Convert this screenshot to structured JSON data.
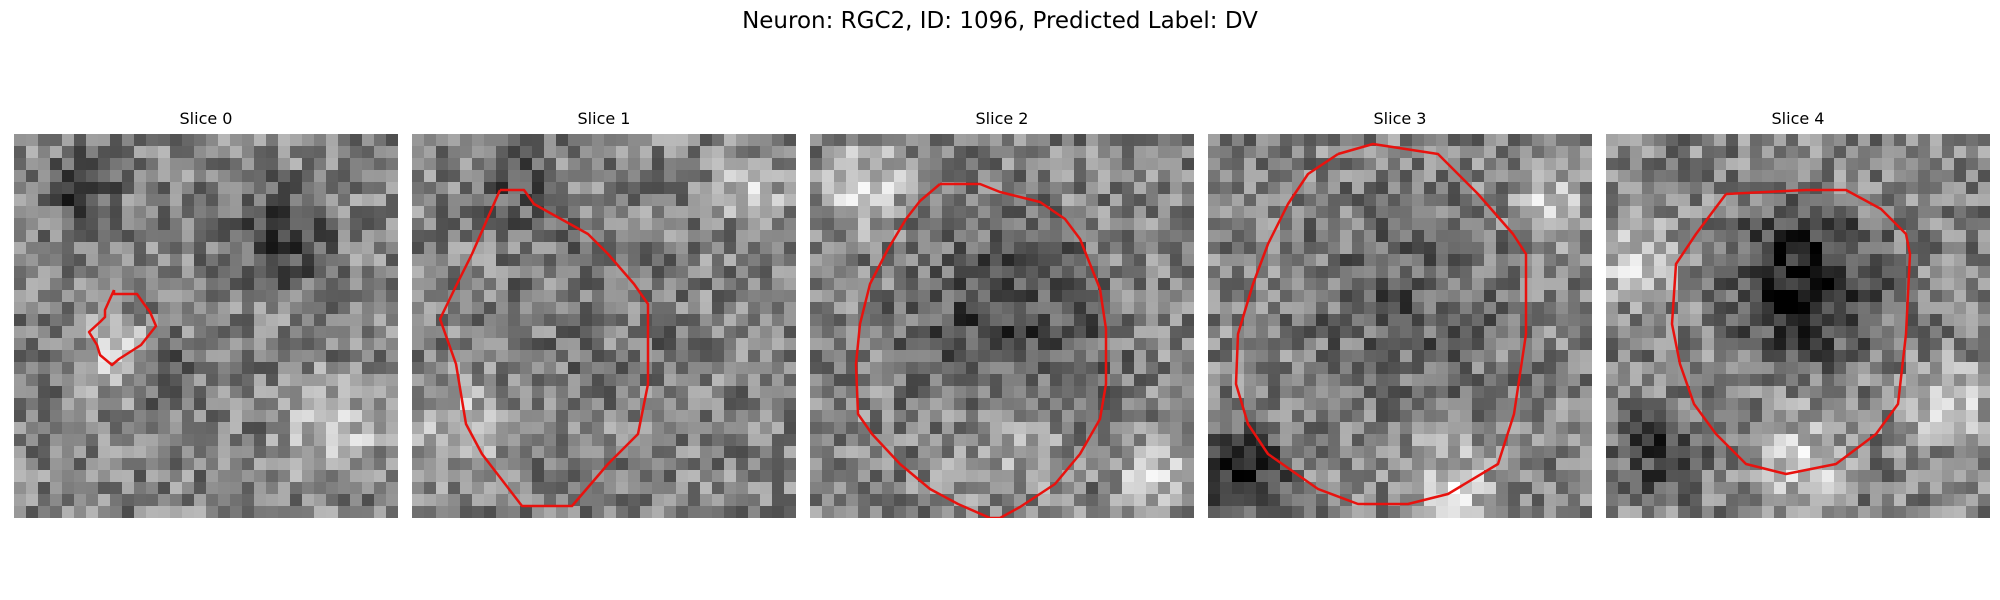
{
  "figure": {
    "title": "Neuron: RGC2, ID: 1096, Predicted Label: DV"
  },
  "panels": [
    {
      "title": "Slice 0",
      "contour_color": "#e8120e"
    },
    {
      "title": "Slice 1",
      "contour_color": "#e8120e"
    },
    {
      "title": "Slice 2",
      "contour_color": "#e8120e"
    },
    {
      "title": "Slice 3",
      "contour_color": "#e8120e"
    },
    {
      "title": "Slice 4",
      "contour_color": "#e8120e"
    }
  ],
  "image": {
    "colormap": "grayscale",
    "pixel_grid": "32x32"
  }
}
